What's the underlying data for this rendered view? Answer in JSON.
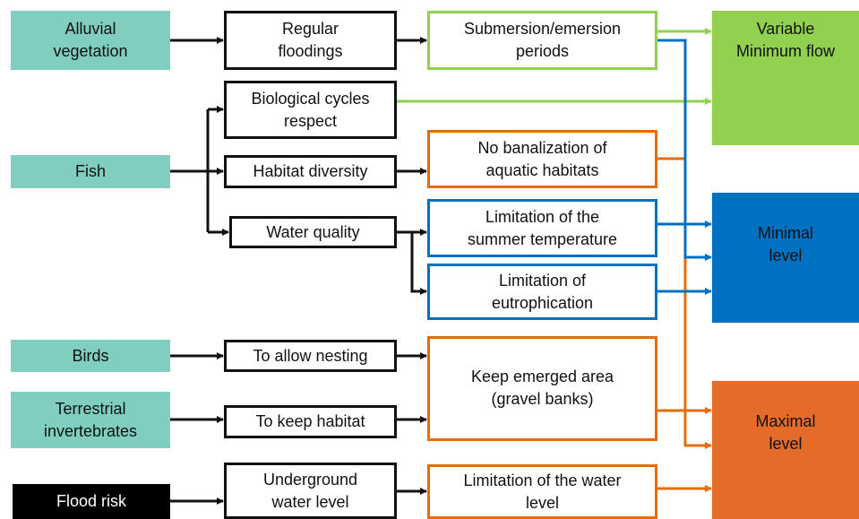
{
  "nodes": [
    {
      "lines": [
        "Alluvial",
        "vegetation"
      ]
    },
    {
      "lines": [
        "Fish"
      ]
    },
    {
      "lines": [
        "Birds"
      ]
    },
    {
      "lines": [
        "Terrestrial",
        "invertebrates"
      ]
    },
    {
      "lines": [
        "Flood risk"
      ]
    },
    {
      "lines": [
        "Regular",
        "floodings"
      ]
    },
    {
      "lines": [
        "Biological cycles",
        "respect"
      ]
    },
    {
      "lines": [
        "Habitat diversity"
      ]
    },
    {
      "lines": [
        "Water quality"
      ]
    },
    {
      "lines": [
        "To allow nesting"
      ]
    },
    {
      "lines": [
        "To keep habitat"
      ]
    },
    {
      "lines": [
        "Underground",
        "water level"
      ]
    },
    {
      "lines": [
        "Submersion/emersion",
        "periods"
      ]
    },
    {
      "lines": [
        "No banalization of",
        "aquatic habitats"
      ]
    },
    {
      "lines": [
        "Limitation of the",
        "summer temperature"
      ]
    },
    {
      "lines": [
        "Limitation of",
        "eutrophication"
      ]
    },
    {
      "lines": [
        "Keep emerged area",
        "(gravel banks)"
      ]
    },
    {
      "lines": [
        "Limitation of the water",
        "level"
      ]
    },
    {
      "lines": [
        "Variable",
        "Minimum flow"
      ]
    },
    {
      "lines": [
        "Minimal",
        "level"
      ]
    },
    {
      "lines": [
        "Maximal",
        "level"
      ]
    }
  ]
}
